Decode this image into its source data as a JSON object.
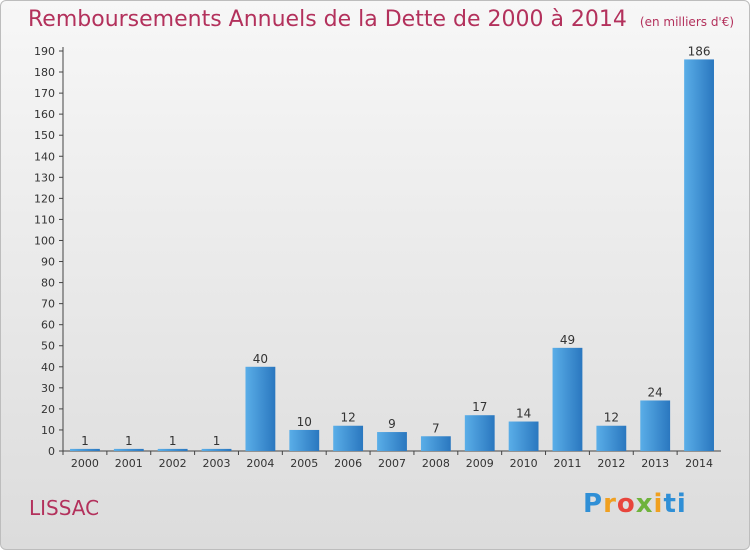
{
  "header": {
    "title": "Remboursements Annuels de la Dette de 2000 à 2014",
    "unit": "(en milliers d'€)"
  },
  "footer": {
    "commune": "LISSAC",
    "logo": "Proxiti"
  },
  "chart_data": {
    "type": "bar",
    "categories": [
      "2000",
      "2001",
      "2002",
      "2003",
      "2004",
      "2005",
      "2006",
      "2007",
      "2008",
      "2009",
      "2010",
      "2011",
      "2012",
      "2013",
      "2014"
    ],
    "values": [
      1,
      1,
      1,
      1,
      40,
      10,
      12,
      9,
      7,
      17,
      14,
      49,
      12,
      24,
      186
    ],
    "ylim": [
      0,
      190
    ],
    "ytick_step": 10,
    "grid": false,
    "bar_color": "#3d8fd6",
    "title_color": "#b3315c"
  }
}
